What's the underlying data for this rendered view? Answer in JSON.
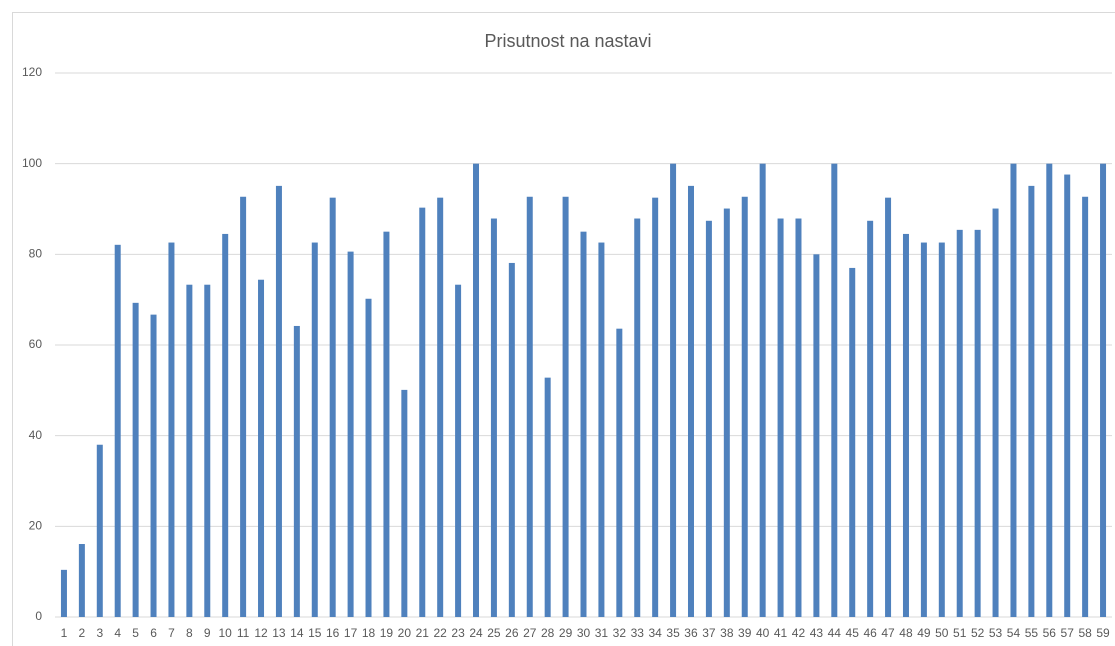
{
  "chart_data": {
    "type": "bar",
    "title": "Prisutnost na nastavi",
    "categories": [
      "1",
      "2",
      "3",
      "4",
      "5",
      "6",
      "7",
      "8",
      "9",
      "10",
      "11",
      "12",
      "13",
      "14",
      "15",
      "16",
      "17",
      "18",
      "19",
      "20",
      "21",
      "22",
      "23",
      "24",
      "25",
      "26",
      "27",
      "28",
      "29",
      "30",
      "31",
      "32",
      "33",
      "34",
      "35",
      "36",
      "37",
      "38",
      "39",
      "40",
      "41",
      "42",
      "43",
      "44",
      "45",
      "46",
      "47",
      "48",
      "49",
      "50",
      "51",
      "52",
      "53",
      "54",
      "55",
      "56",
      "57",
      "58",
      "59"
    ],
    "values": [
      10.4,
      16.1,
      38,
      82.1,
      69.3,
      66.7,
      82.6,
      73.3,
      73.3,
      84.5,
      92.7,
      74.4,
      95.1,
      64.2,
      82.6,
      92.5,
      80.6,
      70.2,
      85,
      50.1,
      90.3,
      92.5,
      73.3,
      100,
      87.9,
      78.1,
      92.7,
      52.8,
      92.7,
      85,
      82.6,
      63.6,
      87.9,
      92.5,
      100,
      95.1,
      87.4,
      90.1,
      92.7,
      100,
      87.9,
      87.9,
      80,
      100,
      77,
      87.4,
      92.5,
      84.5,
      82.6,
      82.6,
      85.4,
      85.4,
      90.1,
      100,
      95.1,
      100,
      97.6,
      92.7,
      100
    ],
    "color": "#4f81bd",
    "ylim": [
      0,
      120
    ],
    "yticks": [
      0,
      20,
      40,
      60,
      80,
      100,
      120
    ],
    "grid": true
  }
}
